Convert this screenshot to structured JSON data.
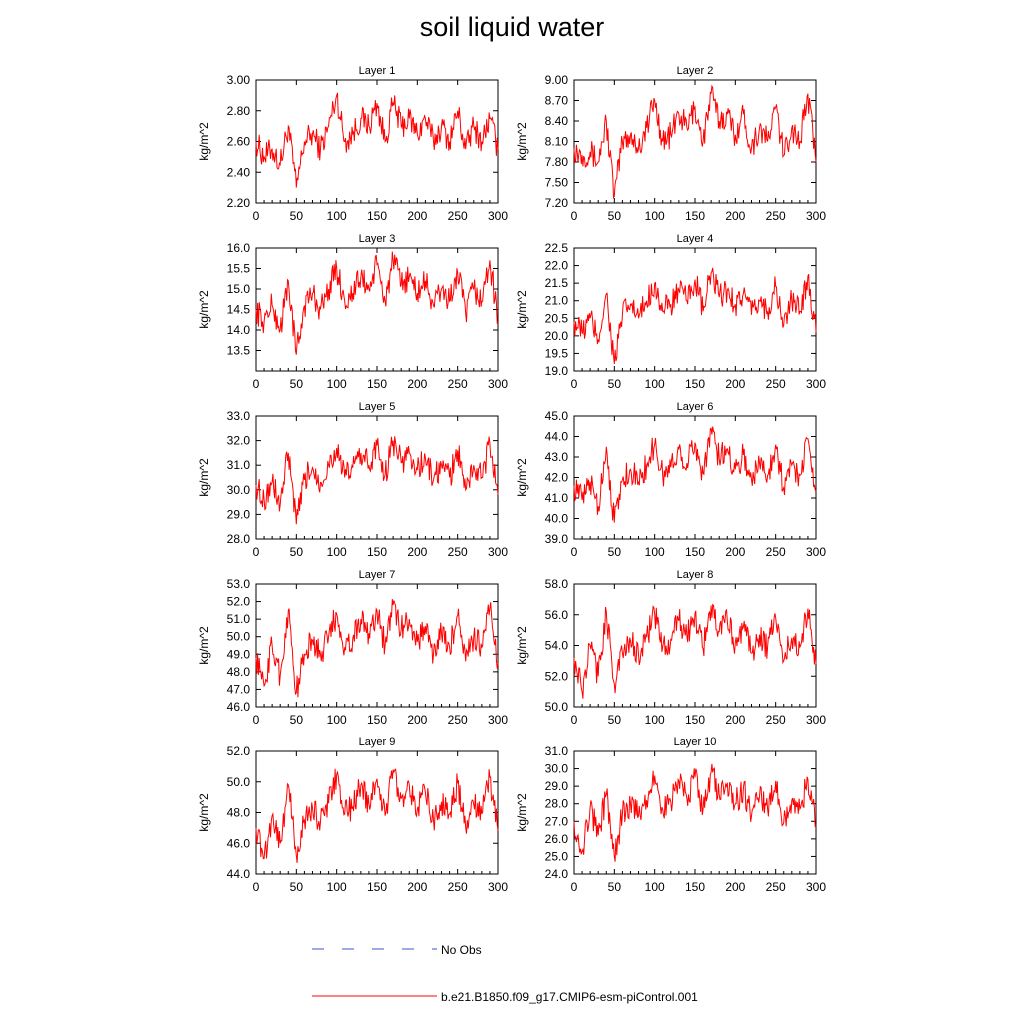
{
  "figure": {
    "title": "soil liquid water"
  },
  "legend": {
    "entries": [
      {
        "label": "No Obs",
        "color": "#3b57c8",
        "style": "dashed"
      },
      {
        "label": "b.e21.B1850.f09_g17.CMIP6-esm-piControl.001",
        "color": "#ff0000",
        "style": "solid"
      }
    ]
  },
  "chart_data": [
    {
      "type": "line",
      "title": "Layer 1",
      "ylabel": "kg/m^2",
      "xlim": [
        0,
        300
      ],
      "ylim": [
        2.2,
        3.0
      ],
      "xticks": [
        0,
        50,
        100,
        150,
        200,
        250,
        300
      ],
      "yticks": [
        "2.20",
        "2.40",
        "2.60",
        "2.80",
        "3.00"
      ],
      "color": "#ff0000",
      "series": [
        {
          "name": "b.e21.B1850.f09_g17.CMIP6-esm-piControl.001",
          "x_start": 0,
          "x_step": 10,
          "values": [
            2.6,
            2.5,
            2.55,
            2.45,
            2.7,
            2.3,
            2.6,
            2.65,
            2.55,
            2.7,
            2.9,
            2.6,
            2.65,
            2.75,
            2.7,
            2.85,
            2.6,
            2.85,
            2.7,
            2.75,
            2.65,
            2.75,
            2.6,
            2.7,
            2.6,
            2.8,
            2.55,
            2.7,
            2.6,
            2.75,
            2.55
          ]
        }
      ]
    },
    {
      "type": "line",
      "title": "Layer 2",
      "ylabel": "kg/m^2",
      "xlim": [
        0,
        300
      ],
      "ylim": [
        7.2,
        9.0
      ],
      "xticks": [
        0,
        50,
        100,
        150,
        200,
        250,
        300
      ],
      "yticks": [
        "7.20",
        "7.50",
        "7.80",
        "8.10",
        "8.40",
        "8.70",
        "9.00"
      ],
      "color": "#ff0000",
      "series": [
        {
          "name": "b.e21.B1850.f09_g17.CMIP6-esm-piControl.001",
          "x_start": 0,
          "x_step": 10,
          "values": [
            8.0,
            7.9,
            7.95,
            7.8,
            8.4,
            7.3,
            8.1,
            8.2,
            8.0,
            8.3,
            8.7,
            8.1,
            8.2,
            8.5,
            8.3,
            8.6,
            8.1,
            8.8,
            8.4,
            8.5,
            8.2,
            8.5,
            8.0,
            8.3,
            8.1,
            8.6,
            7.9,
            8.3,
            8.1,
            8.8,
            7.8
          ]
        }
      ]
    },
    {
      "type": "line",
      "title": "Layer 3",
      "ylabel": "kg/m^2",
      "xlim": [
        0,
        300
      ],
      "ylim": [
        13.0,
        16.0
      ],
      "xticks": [
        0,
        50,
        100,
        150,
        200,
        250,
        300
      ],
      "yticks": [
        "13.5",
        "14.0",
        "14.5",
        "15.0",
        "15.5",
        "16.0"
      ],
      "color": "#ff0000",
      "series": [
        {
          "name": "b.e21.B1850.f09_g17.CMIP6-esm-piControl.001",
          "x_start": 0,
          "x_step": 10,
          "values": [
            14.5,
            14.2,
            14.6,
            14.0,
            15.2,
            13.4,
            14.6,
            14.9,
            14.5,
            15.0,
            15.5,
            14.7,
            14.9,
            15.3,
            15.0,
            15.6,
            14.7,
            15.7,
            15.1,
            15.3,
            14.9,
            15.2,
            14.6,
            15.0,
            14.7,
            15.4,
            14.4,
            15.0,
            14.7,
            15.7,
            14.2
          ]
        }
      ]
    },
    {
      "type": "line",
      "title": "Layer 4",
      "ylabel": "kg/m^2",
      "xlim": [
        0,
        300
      ],
      "ylim": [
        19.0,
        22.5
      ],
      "xticks": [
        0,
        50,
        100,
        150,
        200,
        250,
        300
      ],
      "yticks": [
        "19.0",
        "19.5",
        "20.0",
        "20.5",
        "21.0",
        "21.5",
        "22.0",
        "22.5"
      ],
      "color": "#ff0000",
      "series": [
        {
          "name": "b.e21.B1850.f09_g17.CMIP6-esm-piControl.001",
          "x_start": 0,
          "x_step": 10,
          "values": [
            20.4,
            20.1,
            20.5,
            19.9,
            21.2,
            19.2,
            20.6,
            20.9,
            20.5,
            21.0,
            21.5,
            20.7,
            20.9,
            21.3,
            21.0,
            21.6,
            20.7,
            21.8,
            21.1,
            21.3,
            20.9,
            21.2,
            20.6,
            21.0,
            20.7,
            21.4,
            20.3,
            21.0,
            20.7,
            21.7,
            20.1
          ]
        }
      ]
    },
    {
      "type": "line",
      "title": "Layer 5",
      "ylabel": "kg/m^2",
      "xlim": [
        0,
        300
      ],
      "ylim": [
        28.0,
        33.0
      ],
      "xticks": [
        0,
        50,
        100,
        150,
        200,
        250,
        300
      ],
      "yticks": [
        "28.0",
        "29.0",
        "30.0",
        "31.0",
        "32.0",
        "33.0"
      ],
      "color": "#ff0000",
      "series": [
        {
          "name": "b.e21.B1850.f09_g17.CMIP6-esm-piControl.001",
          "x_start": 0,
          "x_step": 10,
          "values": [
            30.2,
            29.6,
            30.3,
            29.4,
            31.5,
            28.6,
            30.4,
            30.9,
            30.3,
            31.0,
            31.7,
            30.5,
            30.9,
            31.5,
            31.0,
            31.8,
            30.6,
            32.0,
            31.1,
            31.5,
            30.8,
            31.3,
            30.4,
            31.0,
            30.5,
            31.6,
            30.0,
            31.0,
            30.5,
            31.9,
            29.8
          ]
        }
      ]
    },
    {
      "type": "line",
      "title": "Layer 6",
      "ylabel": "kg/m^2",
      "xlim": [
        0,
        300
      ],
      "ylim": [
        39.0,
        45.0
      ],
      "xticks": [
        0,
        50,
        100,
        150,
        200,
        250,
        300
      ],
      "yticks": [
        "39.0",
        "40.0",
        "41.0",
        "42.0",
        "43.0",
        "44.0",
        "45.0"
      ],
      "color": "#ff0000",
      "series": [
        {
          "name": "b.e21.B1850.f09_g17.CMIP6-esm-piControl.001",
          "x_start": 0,
          "x_step": 10,
          "values": [
            41.6,
            40.9,
            41.8,
            40.6,
            43.5,
            39.8,
            41.9,
            42.4,
            41.8,
            42.6,
            43.6,
            42.1,
            42.5,
            43.4,
            42.7,
            43.7,
            42.2,
            44.4,
            42.9,
            43.4,
            42.4,
            43.1,
            41.9,
            42.7,
            42.1,
            43.6,
            41.5,
            42.6,
            42.1,
            43.9,
            41.3
          ]
        }
      ]
    },
    {
      "type": "line",
      "title": "Layer 7",
      "ylabel": "kg/m^2",
      "xlim": [
        0,
        300
      ],
      "ylim": [
        46.0,
        53.0
      ],
      "xticks": [
        0,
        50,
        100,
        150,
        200,
        250,
        300
      ],
      "yticks": [
        "46.0",
        "47.0",
        "48.0",
        "49.0",
        "50.0",
        "51.0",
        "52.0",
        "53.0"
      ],
      "color": "#ff0000",
      "series": [
        {
          "name": "b.e21.B1850.f09_g17.CMIP6-esm-piControl.001",
          "x_start": 0,
          "x_step": 10,
          "values": [
            48.8,
            47.2,
            49.5,
            47.8,
            51.5,
            46.8,
            49.0,
            49.8,
            49.0,
            50.0,
            51.3,
            49.4,
            49.9,
            51.0,
            50.2,
            51.5,
            49.5,
            51.8,
            50.4,
            51.0,
            49.7,
            50.6,
            49.0,
            50.2,
            49.4,
            51.2,
            48.6,
            50.0,
            49.4,
            51.6,
            48.5
          ]
        }
      ]
    },
    {
      "type": "line",
      "title": "Layer 8",
      "ylabel": "kg/m^2",
      "xlim": [
        0,
        300
      ],
      "ylim": [
        50.0,
        58.0
      ],
      "xticks": [
        0,
        50,
        100,
        150,
        200,
        250,
        300
      ],
      "yticks": [
        "50.0",
        "52.0",
        "54.0",
        "56.0",
        "58.0"
      ],
      "color": "#ff0000",
      "series": [
        {
          "name": "b.e21.B1850.f09_g17.CMIP6-esm-piControl.001",
          "x_start": 0,
          "x_step": 10,
          "values": [
            53.2,
            51.0,
            54.0,
            52.0,
            56.2,
            51.5,
            53.5,
            54.3,
            53.4,
            54.6,
            56.0,
            53.9,
            54.4,
            55.6,
            54.6,
            56.1,
            53.8,
            56.6,
            54.9,
            55.6,
            54.2,
            55.2,
            53.5,
            54.7,
            53.9,
            55.8,
            53.0,
            54.5,
            53.9,
            56.4,
            52.8
          ]
        }
      ]
    },
    {
      "type": "line",
      "title": "Layer 9",
      "ylabel": "kg/m^2",
      "xlim": [
        0,
        300
      ],
      "ylim": [
        44.0,
        52.0
      ],
      "xticks": [
        0,
        50,
        100,
        150,
        200,
        250,
        300
      ],
      "yticks": [
        "44.0",
        "46.0",
        "48.0",
        "50.0",
        "52.0"
      ],
      "color": "#ff0000",
      "series": [
        {
          "name": "b.e21.B1850.f09_g17.CMIP6-esm-piControl.001",
          "x_start": 0,
          "x_step": 10,
          "values": [
            47.0,
            45.0,
            47.8,
            46.0,
            49.8,
            45.2,
            47.5,
            48.3,
            47.4,
            48.6,
            50.5,
            47.9,
            48.4,
            49.8,
            48.6,
            50.2,
            47.8,
            50.8,
            48.9,
            49.8,
            48.2,
            49.3,
            47.5,
            48.7,
            47.9,
            49.9,
            47.0,
            48.5,
            47.9,
            50.3,
            46.8
          ]
        }
      ]
    },
    {
      "type": "line",
      "title": "Layer 10",
      "ylabel": "kg/m^2",
      "xlim": [
        0,
        300
      ],
      "ylim": [
        24.0,
        31.0
      ],
      "xticks": [
        0,
        50,
        100,
        150,
        200,
        250,
        300
      ],
      "yticks": [
        "24.0",
        "25.0",
        "26.0",
        "27.0",
        "28.0",
        "29.0",
        "30.0",
        "31.0"
      ],
      "color": "#ff0000",
      "series": [
        {
          "name": "b.e21.B1850.f09_g17.CMIP6-esm-piControl.001",
          "x_start": 0,
          "x_step": 10,
          "values": [
            27.0,
            25.3,
            27.8,
            26.2,
            28.5,
            25.0,
            27.4,
            28.0,
            27.3,
            28.2,
            29.6,
            27.7,
            28.1,
            29.3,
            28.3,
            29.5,
            27.7,
            29.8,
            28.5,
            29.2,
            28.0,
            28.9,
            27.3,
            28.4,
            27.7,
            29.3,
            26.9,
            28.2,
            27.7,
            29.4,
            26.8
          ]
        }
      ]
    }
  ]
}
